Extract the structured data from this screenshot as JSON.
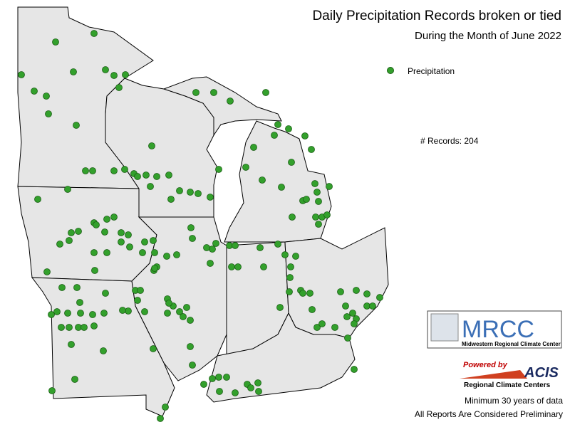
{
  "title": "Daily Precipitation Records broken or tied",
  "subtitle": "During the Month of June 2022",
  "legend": {
    "label": "Precipitation"
  },
  "records": "# Records: 204",
  "logo": {
    "name": "MRCC",
    "full_name": "Midwestern Regional Climate Center",
    "powered_by": "Powered by",
    "acis": "ACIS",
    "rcc": "Regional Climate Centers"
  },
  "footnotes": [
    "Minimum 30 years of data",
    "All Reports Are Considered Preliminary"
  ]
}
